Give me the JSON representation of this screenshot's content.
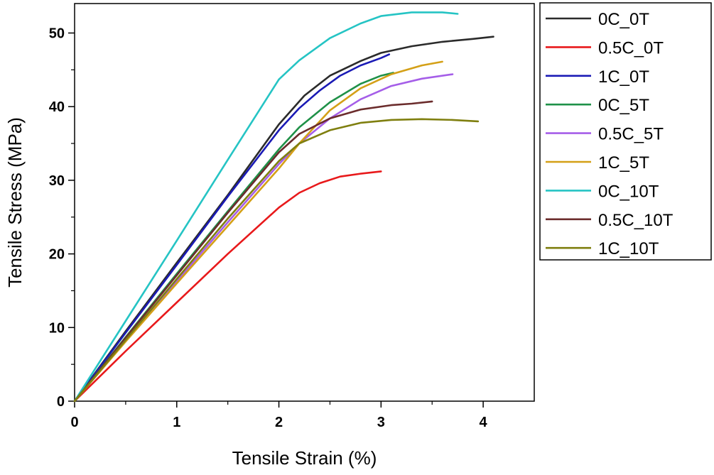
{
  "chart_data": {
    "type": "line",
    "title": "",
    "xlabel": "Tensile Strain (%)",
    "ylabel": "Tensile Stress (MPa)",
    "xlim": [
      0,
      4.5
    ],
    "ylim": [
      0,
      54
    ],
    "xticks": [
      0,
      1,
      2,
      3,
      4
    ],
    "yticks": [
      0,
      10,
      20,
      30,
      40,
      50
    ],
    "grid": false,
    "legend_position": "right",
    "series": [
      {
        "name": "0C_0T",
        "color": "#2b2b2b",
        "points": [
          [
            0,
            0
          ],
          [
            0.5,
            9.5
          ],
          [
            1,
            18.8
          ],
          [
            1.5,
            28
          ],
          [
            2,
            37.6
          ],
          [
            2.25,
            41.5
          ],
          [
            2.5,
            44.2
          ],
          [
            2.8,
            46.2
          ],
          [
            3,
            47.3
          ],
          [
            3.3,
            48.2
          ],
          [
            3.6,
            48.8
          ],
          [
            3.9,
            49.2
          ],
          [
            4.1,
            49.5
          ]
        ]
      },
      {
        "name": "0.5C_0T",
        "color": "#e8191b",
        "points": [
          [
            0,
            0
          ],
          [
            0.5,
            6.8
          ],
          [
            1,
            13.4
          ],
          [
            1.5,
            20
          ],
          [
            2,
            26.3
          ],
          [
            2.2,
            28.3
          ],
          [
            2.4,
            29.6
          ],
          [
            2.6,
            30.5
          ],
          [
            2.8,
            30.9
          ],
          [
            3,
            31.2
          ]
        ]
      },
      {
        "name": "1C_0T",
        "color": "#1a1ab5",
        "points": [
          [
            0,
            0
          ],
          [
            0.5,
            9.3
          ],
          [
            1,
            18.5
          ],
          [
            1.5,
            27.8
          ],
          [
            2,
            36.8
          ],
          [
            2.2,
            39.8
          ],
          [
            2.4,
            42.2
          ],
          [
            2.6,
            44.2
          ],
          [
            2.8,
            45.6
          ],
          [
            3,
            46.6
          ],
          [
            3.08,
            47.1
          ]
        ]
      },
      {
        "name": "0C_5T",
        "color": "#1f9148",
        "points": [
          [
            0,
            0
          ],
          [
            0.5,
            8.7
          ],
          [
            1,
            17.3
          ],
          [
            1.5,
            25.8
          ],
          [
            2,
            34.2
          ],
          [
            2.2,
            37.2
          ],
          [
            2.5,
            40.6
          ],
          [
            2.8,
            43.1
          ],
          [
            3,
            44.2
          ],
          [
            3.12,
            44.6
          ]
        ]
      },
      {
        "name": "0.5C_5T",
        "color": "#a55ee8",
        "points": [
          [
            0,
            0
          ],
          [
            0.5,
            8.2
          ],
          [
            1,
            16.3
          ],
          [
            1.5,
            24.3
          ],
          [
            2,
            32.2
          ],
          [
            2.2,
            35
          ],
          [
            2.5,
            38.4
          ],
          [
            2.8,
            41
          ],
          [
            3.1,
            42.8
          ],
          [
            3.4,
            43.8
          ],
          [
            3.7,
            44.4
          ]
        ]
      },
      {
        "name": "1C_5T",
        "color": "#d4a017",
        "points": [
          [
            0,
            0
          ],
          [
            0.5,
            8.1
          ],
          [
            1,
            16
          ],
          [
            1.5,
            23.8
          ],
          [
            2,
            31.6
          ],
          [
            2.2,
            35
          ],
          [
            2.5,
            39.5
          ],
          [
            2.8,
            42.5
          ],
          [
            3.1,
            44.4
          ],
          [
            3.4,
            45.6
          ],
          [
            3.6,
            46.1
          ]
        ]
      },
      {
        "name": "0C_10T",
        "color": "#25c4c4",
        "points": [
          [
            0,
            0
          ],
          [
            0.5,
            10.9
          ],
          [
            1,
            21.8
          ],
          [
            1.5,
            32.8
          ],
          [
            2,
            43.7
          ],
          [
            2.2,
            46.3
          ],
          [
            2.5,
            49.3
          ],
          [
            2.8,
            51.3
          ],
          [
            3,
            52.3
          ],
          [
            3.3,
            52.8
          ],
          [
            3.6,
            52.8
          ],
          [
            3.75,
            52.6
          ]
        ]
      },
      {
        "name": "0.5C_10T",
        "color": "#6b2c2c",
        "points": [
          [
            0,
            0
          ],
          [
            0.5,
            8.6
          ],
          [
            1,
            17.1
          ],
          [
            1.5,
            25.6
          ],
          [
            2,
            33.8
          ],
          [
            2.2,
            36.3
          ],
          [
            2.5,
            38.4
          ],
          [
            2.8,
            39.6
          ],
          [
            3.1,
            40.2
          ],
          [
            3.3,
            40.4
          ],
          [
            3.5,
            40.7
          ]
        ]
      },
      {
        "name": "1C_10T",
        "color": "#7f7f0f",
        "points": [
          [
            0,
            0
          ],
          [
            0.5,
            8.3
          ],
          [
            1,
            16.6
          ],
          [
            1.5,
            24.8
          ],
          [
            2,
            32.6
          ],
          [
            2.2,
            35
          ],
          [
            2.5,
            36.8
          ],
          [
            2.8,
            37.8
          ],
          [
            3.1,
            38.2
          ],
          [
            3.4,
            38.3
          ],
          [
            3.7,
            38.2
          ],
          [
            3.95,
            38
          ]
        ]
      }
    ]
  }
}
